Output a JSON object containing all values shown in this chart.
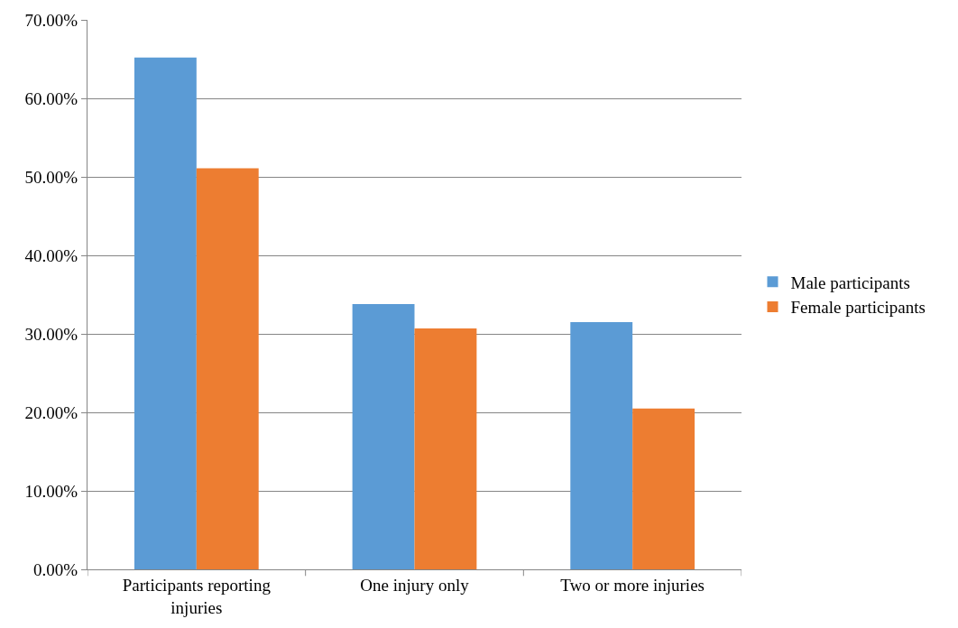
{
  "chart_data": {
    "type": "bar",
    "categories": [
      "Participants reporting injuries",
      "One injury only",
      "Two or more injuries"
    ],
    "series": [
      {
        "name": "Male participants",
        "color": "#5b9bd5",
        "values": [
          65.2,
          33.8,
          31.5
        ]
      },
      {
        "name": "Female participants",
        "color": "#ed7d31",
        "values": [
          51.1,
          30.7,
          20.5
        ]
      }
    ],
    "ylim": [
      0,
      70
    ],
    "yticks": [
      {
        "value": 0,
        "label": "0.00%"
      },
      {
        "value": 10,
        "label": "10.00%"
      },
      {
        "value": 20,
        "label": "20.00%"
      },
      {
        "value": 30,
        "label": "30.00%"
      },
      {
        "value": 40,
        "label": "40.00%"
      },
      {
        "value": 50,
        "label": "50.00%"
      },
      {
        "value": 60,
        "label": "60.00%"
      },
      {
        "value": 70,
        "label": "70.00%"
      }
    ],
    "grid": "y",
    "legend": "right"
  }
}
